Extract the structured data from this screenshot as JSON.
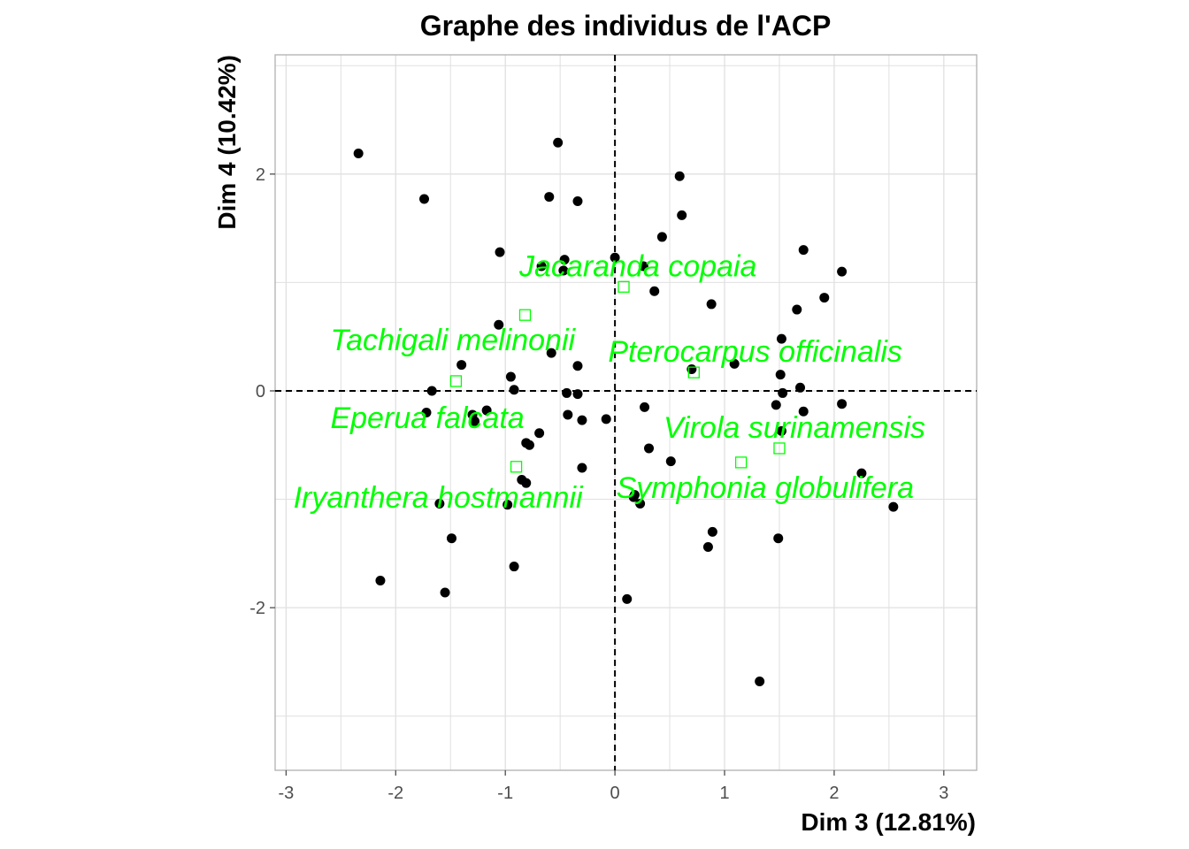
{
  "chart_data": {
    "type": "scatter",
    "title": "Graphe des individus de l'ACP",
    "xlabel": "Dim 3 (12.81%)",
    "ylabel": "Dim 4 (10.42%)",
    "xlim": [
      -3.1,
      3.3
    ],
    "ylim": [
      -3.5,
      3.1
    ],
    "xticks": [
      -3,
      -2,
      -1,
      0,
      1,
      2,
      3
    ],
    "yticks": [
      -2,
      0,
      2
    ],
    "grid": true,
    "reference_lines": {
      "x": 0,
      "y": 0,
      "style": "dashed"
    },
    "colors": {
      "points": "#000000",
      "labels": "#00ff00",
      "grid": "#e0e0e0",
      "panel_border": "#b0b0b0"
    },
    "series": [
      {
        "marker": "filled-circle",
        "color": "#000000",
        "points": [
          [
            -2.34,
            2.19
          ],
          [
            -1.74,
            1.77
          ],
          [
            -0.52,
            2.29
          ],
          [
            -0.6,
            1.79
          ],
          [
            -0.34,
            1.75
          ],
          [
            -1.05,
            1.28
          ],
          [
            -0.67,
            1.15
          ],
          [
            -0.46,
            1.21
          ],
          [
            -0.47,
            1.11
          ],
          [
            0.59,
            1.98
          ],
          [
            0.61,
            1.62
          ],
          [
            0.43,
            1.42
          ],
          [
            0.0,
            1.23
          ],
          [
            0.26,
            1.15
          ],
          [
            0.36,
            0.92
          ],
          [
            0.88,
            0.8
          ],
          [
            1.72,
            1.3
          ],
          [
            2.07,
            1.1
          ],
          [
            1.91,
            0.86
          ],
          [
            1.66,
            0.75
          ],
          [
            1.52,
            0.48
          ],
          [
            1.09,
            0.25
          ],
          [
            0.7,
            0.2
          ],
          [
            1.51,
            0.15
          ],
          [
            1.69,
            0.03
          ],
          [
            1.53,
            -0.02
          ],
          [
            2.07,
            -0.12
          ],
          [
            1.47,
            -0.13
          ],
          [
            1.72,
            -0.19
          ],
          [
            1.52,
            -0.37
          ],
          [
            2.25,
            -0.76
          ],
          [
            2.54,
            -1.07
          ],
          [
            1.49,
            -1.36
          ],
          [
            0.89,
            -1.3
          ],
          [
            0.85,
            -1.44
          ],
          [
            1.32,
            -2.68
          ],
          [
            0.11,
            -1.92
          ],
          [
            0.17,
            -0.98
          ],
          [
            0.23,
            -1.04
          ],
          [
            0.18,
            -0.96
          ],
          [
            0.51,
            -0.65
          ],
          [
            0.31,
            -0.53
          ],
          [
            0.27,
            -0.15
          ],
          [
            -0.08,
            -0.26
          ],
          [
            -0.3,
            -0.71
          ],
          [
            -0.3,
            -0.27
          ],
          [
            -0.34,
            0.23
          ],
          [
            -0.34,
            -0.03
          ],
          [
            -0.44,
            -0.02
          ],
          [
            -0.43,
            -0.22
          ],
          [
            -0.58,
            0.35
          ],
          [
            -1.06,
            0.61
          ],
          [
            -0.95,
            0.13
          ],
          [
            -0.92,
            0.01
          ],
          [
            -0.69,
            -0.39
          ],
          [
            -0.81,
            -0.48
          ],
          [
            -0.78,
            -0.5
          ],
          [
            -0.85,
            -0.82
          ],
          [
            -0.81,
            -0.85
          ],
          [
            -0.98,
            -1.05
          ],
          [
            -0.92,
            -1.62
          ],
          [
            -1.4,
            0.24
          ],
          [
            -1.67,
            0.0
          ],
          [
            -1.72,
            -0.2
          ],
          [
            -1.3,
            -0.22
          ],
          [
            -1.28,
            -0.28
          ],
          [
            -1.17,
            -0.18
          ],
          [
            -1.6,
            -1.04
          ],
          [
            -1.49,
            -1.36
          ],
          [
            -1.55,
            -1.86
          ],
          [
            -2.14,
            -1.75
          ]
        ]
      },
      {
        "marker": "hollow-square",
        "color": "#00ff00",
        "labeled": true,
        "points": [
          {
            "label": "Jacaranda copaia",
            "x": 0.08,
            "y": 0.96
          },
          {
            "label": "Tachigali melinonii",
            "x": -0.82,
            "y": 0.7
          },
          {
            "label": "Pterocarpus officinalis",
            "x": 0.72,
            "y": 0.17
          },
          {
            "label": "Eperua falcata",
            "x": -1.45,
            "y": 0.09
          },
          {
            "label": "Virola surinamensis",
            "x": 1.5,
            "y": -0.53
          },
          {
            "label": "Symphonia globulifera",
            "x": 1.15,
            "y": -0.66
          },
          {
            "label": "Iryanthera hostmannii",
            "x": -0.9,
            "y": -0.7
          }
        ]
      }
    ]
  }
}
